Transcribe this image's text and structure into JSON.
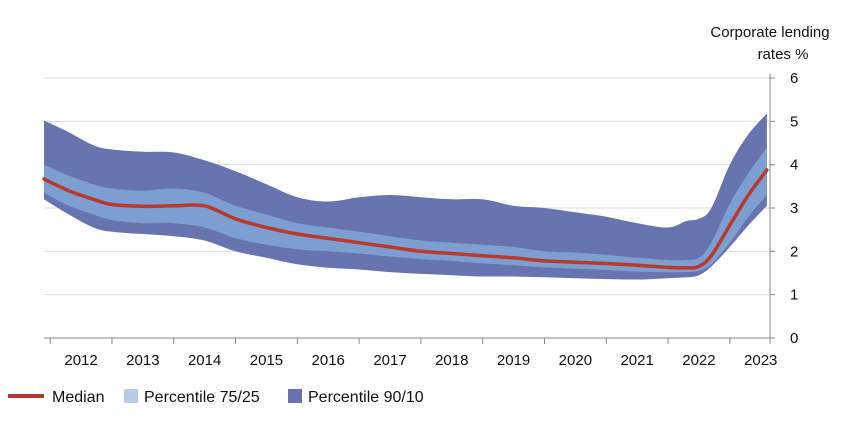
{
  "chart_data": {
    "type": "area",
    "title": "",
    "ylabel_lines": [
      "Corporate lending",
      "rates %"
    ],
    "ylim": [
      0,
      6
    ],
    "y_ticks": [
      "0",
      "1",
      "2",
      "3",
      "4",
      "5",
      "6"
    ],
    "x_range": [
      2011.9,
      2023.65
    ],
    "x_tick_labels": [
      "2012",
      "2013",
      "2014",
      "2015",
      "2016",
      "2017",
      "2018",
      "2019",
      "2020",
      "2021",
      "2022",
      "2023"
    ],
    "grid": true,
    "legend_position": "bottom-left",
    "colors": {
      "median": "#b83a2e",
      "p75_25": "#7d9ed0",
      "p90_10": "#6774b0"
    },
    "x": [
      2011.9,
      2012.3,
      2012.7,
      2013.0,
      2013.5,
      2014.0,
      2014.5,
      2015.0,
      2015.5,
      2016.0,
      2016.5,
      2017.0,
      2017.5,
      2018.0,
      2018.5,
      2019.0,
      2019.5,
      2020.0,
      2020.5,
      2021.0,
      2021.5,
      2022.0,
      2022.3,
      2022.5,
      2022.7,
      2023.0,
      2023.3,
      2023.6
    ],
    "series": [
      {
        "name": "Median",
        "role": "line",
        "values": [
          3.67,
          3.4,
          3.2,
          3.08,
          3.04,
          3.05,
          3.05,
          2.75,
          2.55,
          2.4,
          2.3,
          2.2,
          2.1,
          2.0,
          1.95,
          1.9,
          1.85,
          1.78,
          1.75,
          1.72,
          1.68,
          1.63,
          1.62,
          1.65,
          1.9,
          2.6,
          3.3,
          3.88
        ]
      },
      {
        "name": "Percentile 75/25",
        "role": "band",
        "upper": [
          4.0,
          3.75,
          3.55,
          3.45,
          3.4,
          3.45,
          3.35,
          3.05,
          2.85,
          2.65,
          2.55,
          2.45,
          2.35,
          2.25,
          2.2,
          2.15,
          2.1,
          2.0,
          1.97,
          1.92,
          1.85,
          1.8,
          1.8,
          1.85,
          2.2,
          3.1,
          3.8,
          4.4
        ],
        "lower": [
          3.35,
          3.05,
          2.85,
          2.72,
          2.65,
          2.65,
          2.55,
          2.3,
          2.15,
          2.05,
          2.0,
          1.95,
          1.88,
          1.82,
          1.78,
          1.72,
          1.68,
          1.63,
          1.6,
          1.57,
          1.53,
          1.52,
          1.52,
          1.55,
          1.7,
          2.2,
          2.8,
          3.3
        ]
      },
      {
        "name": "Percentile 90/10",
        "role": "band",
        "upper": [
          5.02,
          4.75,
          4.45,
          4.35,
          4.3,
          4.28,
          4.1,
          3.85,
          3.55,
          3.25,
          3.15,
          3.25,
          3.3,
          3.25,
          3.2,
          3.2,
          3.05,
          3.0,
          2.9,
          2.8,
          2.65,
          2.55,
          2.7,
          2.75,
          3.0,
          4.0,
          4.7,
          5.18
        ],
        "lower": [
          3.2,
          2.85,
          2.55,
          2.45,
          2.4,
          2.35,
          2.25,
          2.0,
          1.85,
          1.7,
          1.62,
          1.58,
          1.52,
          1.48,
          1.45,
          1.42,
          1.42,
          1.4,
          1.38,
          1.36,
          1.35,
          1.38,
          1.4,
          1.45,
          1.65,
          2.1,
          2.6,
          3.05
        ]
      }
    ]
  }
}
